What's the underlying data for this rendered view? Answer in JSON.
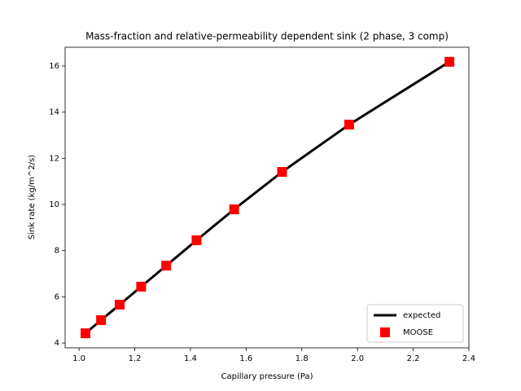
{
  "chart_data": {
    "type": "line",
    "title": "Mass-fraction and relative-permeability dependent sink (2 phase, 3 comp)",
    "xlabel": "Capillary pressure (Pa)",
    "ylabel": "Sink rate (kg/m^2/s)",
    "x": [
      1.023,
      1.079,
      1.146,
      1.223,
      1.313,
      1.422,
      1.557,
      1.729,
      1.97,
      2.33
    ],
    "series": [
      {
        "name": "expected",
        "color": "#000000",
        "mode": "line",
        "values": [
          4.42,
          4.99,
          5.66,
          6.44,
          7.35,
          8.45,
          9.79,
          11.41,
          13.46,
          16.18
        ]
      },
      {
        "name": "MOOSE",
        "color": "#ff0000",
        "mode": "marker",
        "values": [
          4.42,
          4.99,
          5.66,
          6.44,
          7.35,
          8.45,
          9.79,
          11.41,
          13.46,
          16.18
        ]
      }
    ],
    "xlim": [
      0.95,
      2.4
    ],
    "xticks": [
      {
        "value": 1.0,
        "label": "1.0"
      },
      1.2,
      1.4,
      1.6,
      1.8,
      {
        "value": 2.0,
        "label": "2.0"
      },
      2.2,
      2.4
    ],
    "ylim": [
      3.79,
      16.81
    ],
    "yticks": [
      4,
      6,
      8,
      10,
      12,
      14,
      16
    ],
    "legend": "lower right"
  }
}
